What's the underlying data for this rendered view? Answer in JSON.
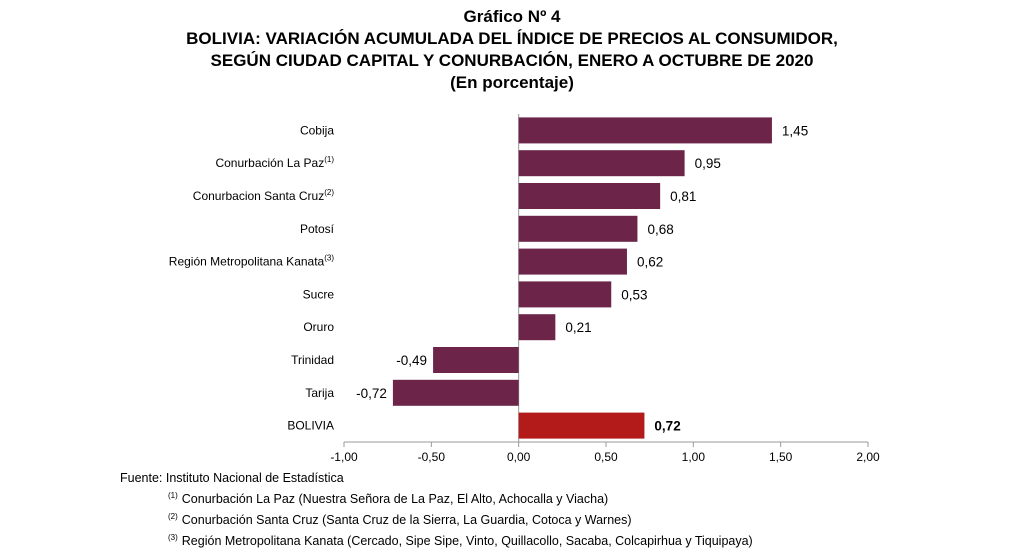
{
  "title": {
    "line1": "Gráfico Nº 4",
    "line2": "BOLIVIA: VARIACIÓN ACUMULADA DEL ÍNDICE DE PRECIOS AL CONSUMIDOR,",
    "line3": "SEGÚN CIUDAD CAPITAL Y CONURBACIÓN, ENERO A OCTUBRE DE 2020",
    "line4": "(En porcentaje)"
  },
  "colors": {
    "bar": "#6d2449",
    "total": "#b31b1b",
    "axis": "#9a9a9a"
  },
  "chart_data": {
    "type": "bar",
    "orientation": "horizontal",
    "categories": [
      {
        "label": "Cobija",
        "sup": ""
      },
      {
        "label": "Conurbación La Paz",
        "sup": "(1)"
      },
      {
        "label": "Conurbacion Santa Cruz",
        "sup": "(2)"
      },
      {
        "label": "Potosí",
        "sup": ""
      },
      {
        "label": "Región Metropolitana Kanata",
        "sup": "(3)"
      },
      {
        "label": "Sucre",
        "sup": ""
      },
      {
        "label": "Oruro",
        "sup": ""
      },
      {
        "label": "Trinidad",
        "sup": ""
      },
      {
        "label": "Tarija",
        "sup": ""
      },
      {
        "label": "BOLIVIA",
        "sup": ""
      }
    ],
    "values": [
      1.45,
      0.95,
      0.81,
      0.68,
      0.62,
      0.53,
      0.21,
      -0.49,
      -0.72,
      0.72
    ],
    "value_labels": [
      "1,45",
      "0,95",
      "0,81",
      "0,68",
      "0,62",
      "0,53",
      "0,21",
      "-0,49",
      "-0,72",
      "0,72"
    ],
    "highlight_index": 9,
    "xlim": [
      -1.0,
      2.0
    ],
    "xticks": [
      -1.0,
      -0.5,
      0.0,
      0.5,
      1.0,
      1.5,
      2.0
    ],
    "xtick_labels": [
      "-1,00",
      "-0,50",
      "0,00",
      "0,50",
      "1,00",
      "1,50",
      "2,00"
    ],
    "grid": false,
    "legend": "none"
  },
  "footer": {
    "source": "Fuente: Instituto Nacional de Estadística",
    "notes": [
      {
        "sup": "(1)",
        "text": "Conurbación La Paz (Nuestra Señora de La Paz, El Alto, Achocalla y Viacha)"
      },
      {
        "sup": "(2)",
        "text": "Conurbación Santa Cruz (Santa Cruz de la Sierra, La Guardia, Cotoca y Warnes)"
      },
      {
        "sup": "(3)",
        "text": "Región Metropolitana Kanata (Cercado, Sipe Sipe, Vinto, Quillacollo, Sacaba, Colcapirhua y Tiquipaya)"
      }
    ]
  }
}
